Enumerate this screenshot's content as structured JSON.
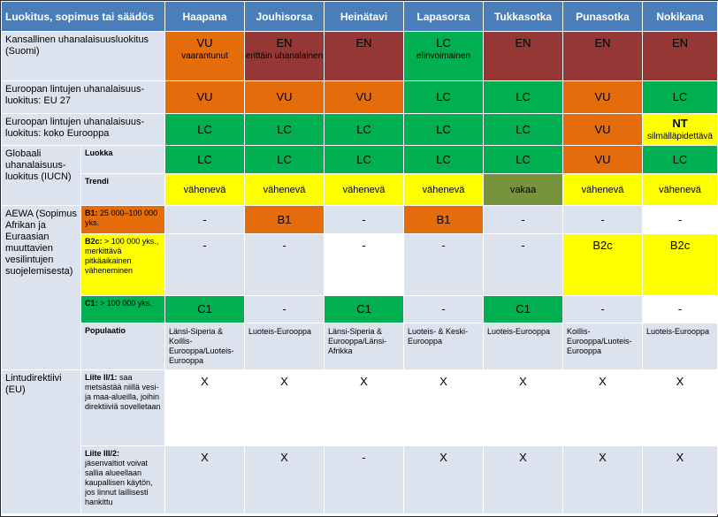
{
  "header": {
    "title": "Luokitus, sopimus tai säädös",
    "species": [
      "Haapana",
      "Jouhisorsa",
      "Heinätavi",
      "Lapasorsa",
      "Tukkasotka",
      "Punasotka",
      "Nokikana"
    ]
  },
  "rows": {
    "kansallinen": {
      "label": "Kansallinen uhanalaisuusluokitus (Suomi)",
      "cells": [
        {
          "code": "VU",
          "note": "vaarantunut"
        },
        {
          "code": "EN",
          "note": "erittäin uhanalainen"
        },
        {
          "code": "EN",
          "note": ""
        },
        {
          "code": "LC",
          "note": "elinvoimainen"
        },
        {
          "code": "EN",
          "note": ""
        },
        {
          "code": "EN",
          "note": ""
        },
        {
          "code": "EN",
          "note": ""
        }
      ]
    },
    "eu27": {
      "label": "Euroopan lintujen uhanalaisuus-luokitus: EU 27",
      "cells": [
        "VU",
        "VU",
        "VU",
        "LC",
        "LC",
        "VU",
        "LC"
      ]
    },
    "europe": {
      "label": "Euroopan lintujen uhanalaisuus-luokitus: koko Eurooppa",
      "cells": [
        {
          "code": "LC",
          "note": ""
        },
        {
          "code": "LC",
          "note": ""
        },
        {
          "code": "LC",
          "note": ""
        },
        {
          "code": "LC",
          "note": ""
        },
        {
          "code": "LC",
          "note": ""
        },
        {
          "code": "VU",
          "note": ""
        },
        {
          "code": "NT",
          "note": "silmälläpidettävä"
        }
      ]
    },
    "iucn": {
      "label": "Globaali uhanalaisuus-luokitus (IUCN)",
      "luokka_label": "Luokka",
      "luokka": [
        "LC",
        "LC",
        "LC",
        "LC",
        "LC",
        "VU",
        "LC"
      ],
      "trendi_label": "Trendi",
      "trendi": [
        "vähenevä",
        "vähenevä",
        "vähenevä",
        "vähenevä",
        "vakaa",
        "vähenevä",
        "vähenevä"
      ]
    },
    "aewa": {
      "label": "AEWA (Sopimus Afrikan ja Euraasian muuttavien vesilintujen suojelemisesta)",
      "b1_label": "B1:",
      "b1_rest": " 25 000–100 000 yks.",
      "b1": [
        "-",
        "B1",
        "-",
        "B1",
        "-",
        "-",
        "-"
      ],
      "b2c_label": "B2c:",
      "b2c_rest": " > 100 000 yks., merkittävä pitkäaikainen väheneminen",
      "b2c": [
        "-",
        "-",
        "-",
        "-",
        "-",
        "B2c",
        "B2c"
      ],
      "c1_label": "C1:",
      "c1_rest": " > 100 000 yks.",
      "c1": [
        "C1",
        "-",
        "C1",
        "-",
        "C1",
        "-",
        "-"
      ],
      "pop_label": "Populaatio",
      "pop": [
        "Länsi-Siperia & Koillis-Eurooppa/Luoteis-Eurooppa",
        "Luoteis-Eurooppa",
        "Länsi-Siperia & Eurooppa/Länsi-Afrikka",
        "Luoteis- & Keski-Eurooppa",
        "Luoteis-Eurooppa",
        "Koillis-Eurooppa/Luoteis-Eurooppa",
        "Luoteis-Eurooppa"
      ]
    },
    "lintu": {
      "label": "Lintudirektiivi (EU)",
      "l2_label": "Liite II/1:",
      "l2_rest": " saa metsästää niillä vesi- ja maa-alueilla, joihin direktiiviä sovelletaan",
      "l2": [
        "X",
        "X",
        "X",
        "X",
        "X",
        "X",
        "X"
      ],
      "l3_label": "Liite III/2:",
      "l3_rest": " jäsenvaltiot voivat sallia alueellaan kaupallisen käytön, jos linnut laillisesti hankittu",
      "l3": [
        "X",
        "X",
        "-",
        "X",
        "X",
        "X",
        "X"
      ]
    }
  },
  "colors": {
    "header": "#4a7ebb",
    "label_bg": "#dce3ef",
    "VU": "#e46c0a",
    "EN": "#953735",
    "LC": "#00b050",
    "NT": "#ffff00",
    "decreasing": "#ffff00",
    "stable": "#77933c"
  }
}
